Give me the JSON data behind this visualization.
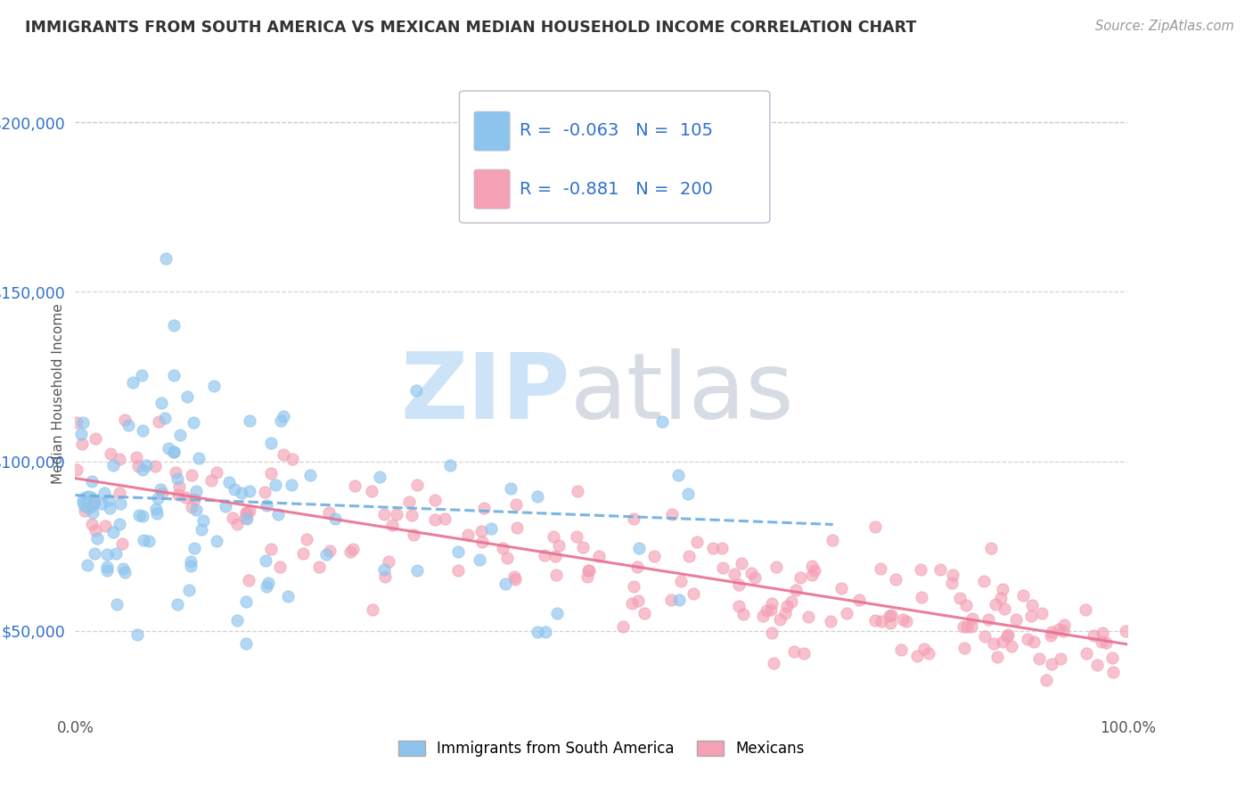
{
  "title": "IMMIGRANTS FROM SOUTH AMERICA VS MEXICAN MEDIAN HOUSEHOLD INCOME CORRELATION CHART",
  "source": "Source: ZipAtlas.com",
  "ylabel": "Median Household Income",
  "xlim": [
    0.0,
    100.0
  ],
  "ylim": [
    25000,
    215000
  ],
  "yticks": [
    50000,
    100000,
    150000,
    200000
  ],
  "ytick_labels": [
    "$50,000",
    "$100,000",
    "$150,000",
    "$200,000"
  ],
  "xtick_labels": [
    "0.0%",
    "100.0%"
  ],
  "series1_color": "#8DC4EE",
  "series2_color": "#F4A0B5",
  "series1_label": "Immigrants from South America",
  "series2_label": "Mexicans",
  "R1": -0.063,
  "N1": 105,
  "R2": -0.881,
  "N2": 200,
  "legend_color": "#3070CC",
  "trend1_color": "#6AAEE0",
  "trend2_color": "#E87090",
  "background_color": "#FFFFFF",
  "grid_color": "#CCCCCC",
  "watermark_ZIP_color": "#B8D8F5",
  "watermark_atlas_color": "#B0B8C8",
  "seed1": 42,
  "seed2": 99
}
